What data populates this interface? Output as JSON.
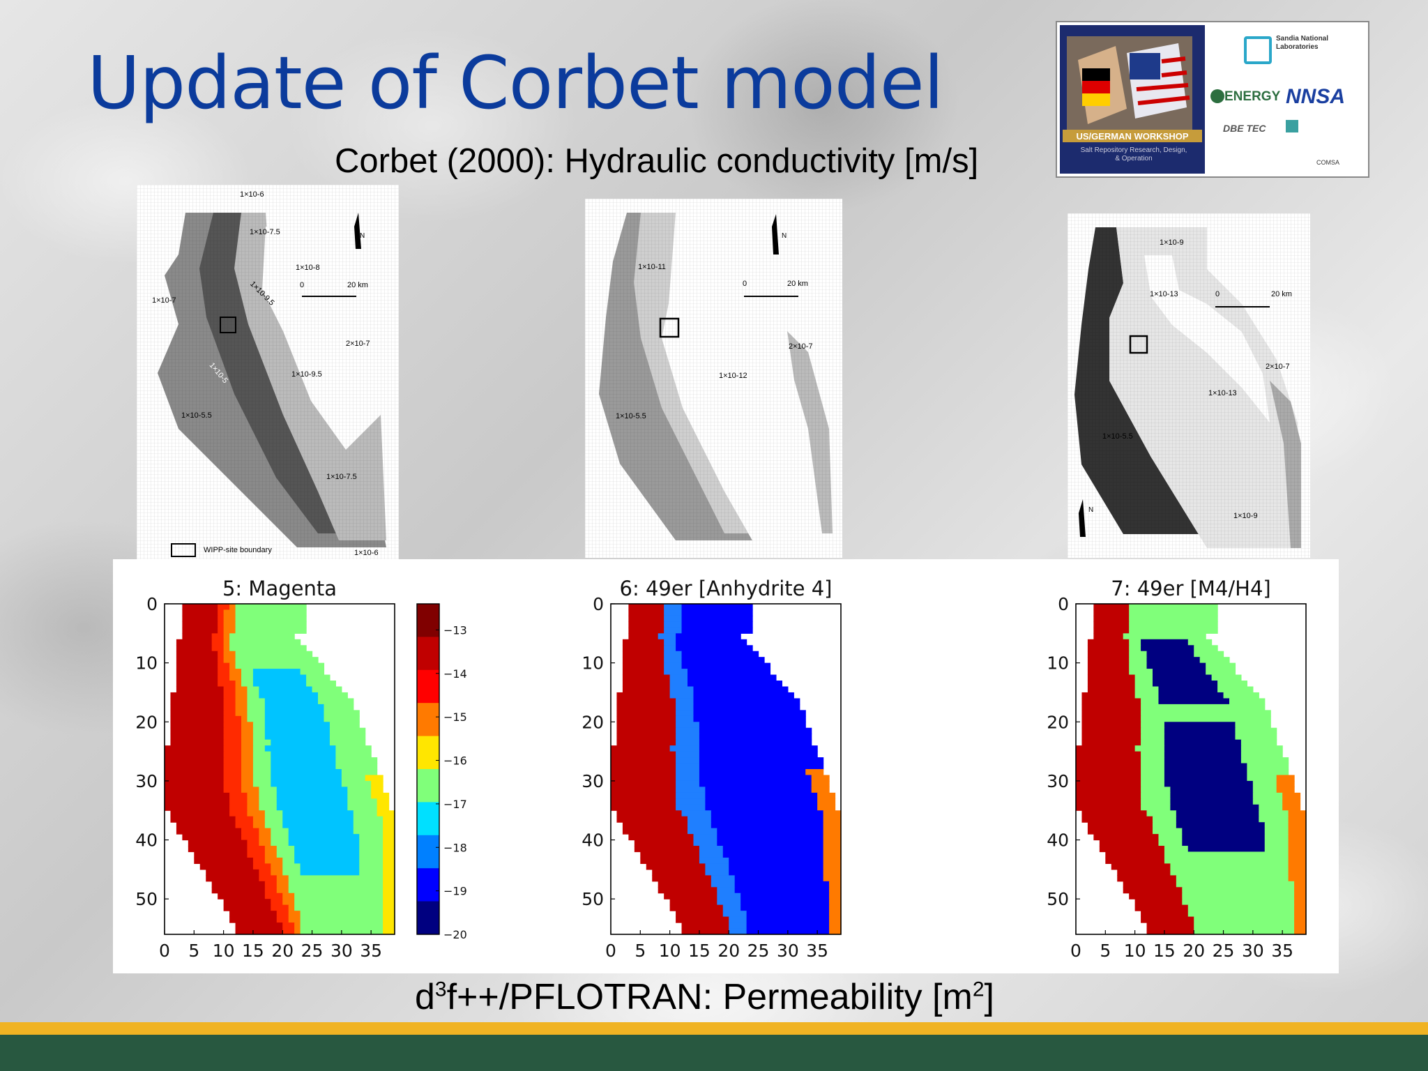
{
  "slide": {
    "title": "Update of Corbet model",
    "subtitle_top": "Corbet (2000): Hydraulic conductivity [m/s]",
    "subtitle_bottom_prefix": "d",
    "subtitle_bottom_sup1": "3",
    "subtitle_bottom_mid": "f++/PFLOTRAN: Permeability [m",
    "subtitle_bottom_sup2": "2",
    "subtitle_bottom_suffix": "]"
  },
  "logo": {
    "workshop": "US/GERMAN WORKSHOP",
    "workshop_sub": "Salt Repository Research, Design, & Operation",
    "sandia": "Sandia National Laboratories",
    "energy": "ENERGY",
    "nnsa": "NNSA",
    "dbe": "DBE TEC",
    "comsa": "COMSA"
  },
  "maps": [
    {
      "labels": [
        "1×10-6",
        "1×10-7.5",
        "1×10-8",
        "1×10-9.5",
        "1×10-7",
        "1×10-5",
        "1×10-9.5",
        "2×10-7",
        "1×10-5.5",
        "1×10-7.5",
        "1×10-6"
      ],
      "north": "N",
      "scale_start": "0",
      "scale_end": "20 km",
      "legend": "WIPP-site boundary"
    },
    {
      "labels": [
        "1×10-11",
        "2×10-7",
        "1×10-12",
        "1×10-5.5"
      ],
      "north": "N",
      "scale_start": "0",
      "scale_end": "20 km"
    },
    {
      "labels": [
        "1×10-9",
        "1×10-13",
        "2×10-7",
        "1×10-13",
        "1×10-5.5",
        "1×10-9"
      ],
      "north": "N",
      "scale_start": "0",
      "scale_end": "20 km"
    }
  ],
  "colors": {
    "title": "#0b3b9c",
    "gold_bar": "#f0b323",
    "green_bar": "#285840",
    "red": "#c00000",
    "orange": "#ff7a00",
    "yellow": "#ffe600",
    "lightgreen": "#80ff7a",
    "cyan": "#00c4ff",
    "medblue": "#1f7fff",
    "blue": "#0000ff",
    "navy": "#000080"
  },
  "chart_data": [
    {
      "type": "heatmap",
      "title": "5: Magenta",
      "x_ticks": [
        "0",
        "5",
        "10",
        "15",
        "20",
        "25",
        "30",
        "35"
      ],
      "y_ticks": [
        "0",
        "10",
        "20",
        "30",
        "40",
        "50"
      ],
      "xlim": [
        0,
        39
      ],
      "ylim": [
        56,
        0
      ],
      "colorbar": {
        "ticks": [
          "−13",
          "−14",
          "−15",
          "−16",
          "−17",
          "−18",
          "−19",
          "−20"
        ],
        "range": [
          -20,
          -12.4
        ]
      }
    },
    {
      "type": "heatmap",
      "title": "6: 49er [Anhydrite 4]",
      "x_ticks": [
        "0",
        "5",
        "10",
        "15",
        "20",
        "25",
        "30",
        "35"
      ],
      "y_ticks": [
        "0",
        "10",
        "20",
        "30",
        "40",
        "50"
      ],
      "xlim": [
        0,
        39
      ],
      "ylim": [
        56,
        0
      ]
    },
    {
      "type": "heatmap",
      "title": "7: 49er [M4/H4]",
      "x_ticks": [
        "0",
        "5",
        "10",
        "15",
        "20",
        "25",
        "30",
        "35"
      ],
      "y_ticks": [
        "0",
        "10",
        "20",
        "30",
        "40",
        "50"
      ],
      "xlim": [
        0,
        39
      ],
      "ylim": [
        56,
        0
      ]
    }
  ]
}
